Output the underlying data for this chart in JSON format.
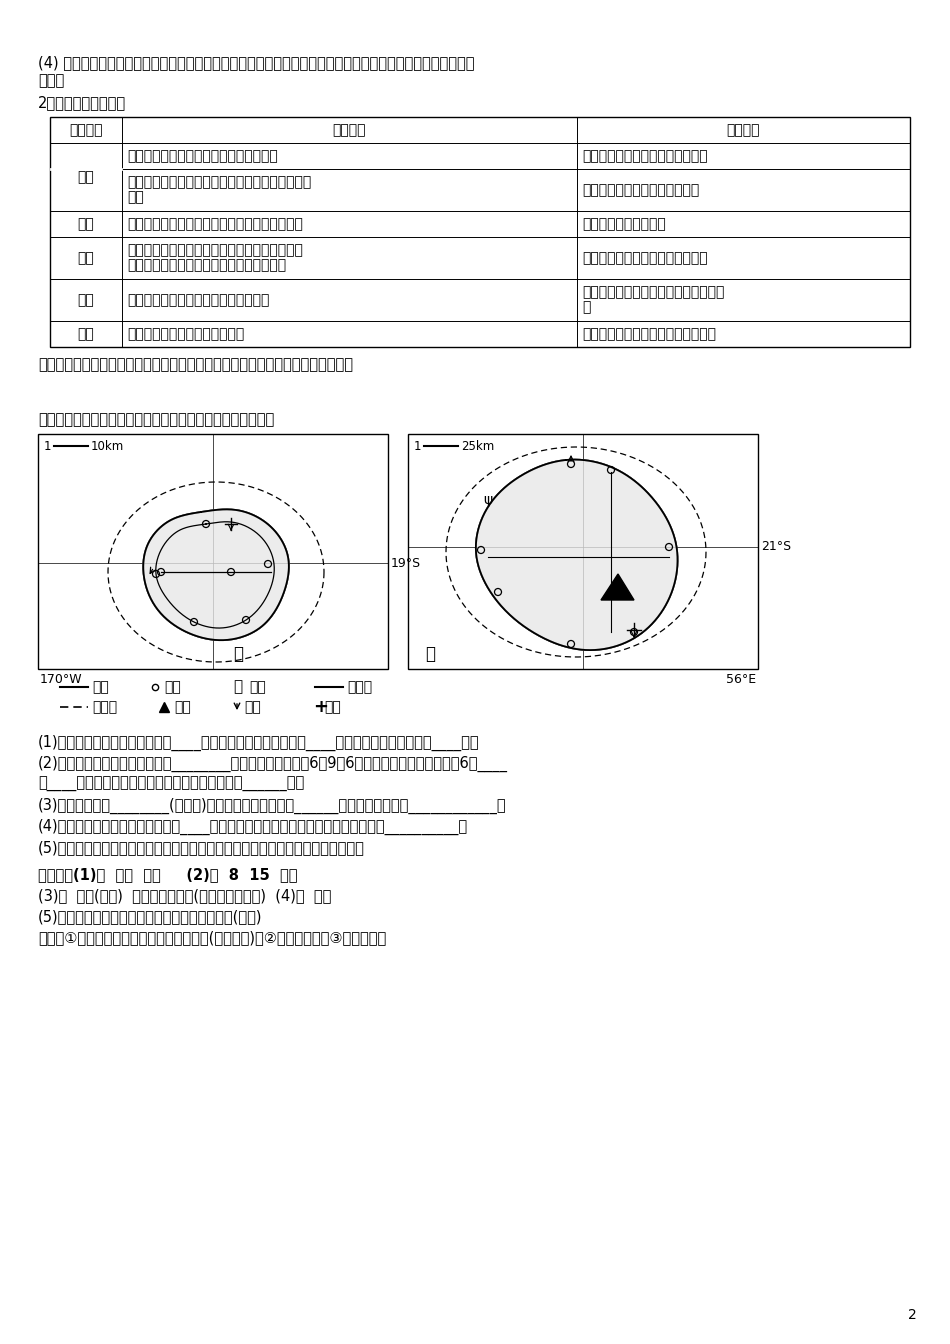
{
  "bg_color": "#ffffff",
  "top_text1": "(4) 土壤差异的形成：不同区域的气候、植被及人类生产活动因素的差异造成土壤类型、厚度、肥力、酸碱度的",
  "top_text2": "差异。",
  "top_text3": "2．人类活动因素差异",
  "table_header": [
    "人类活动",
    "差异成因",
    "具体表现"
  ],
  "row_data": [
    {
      "col1": "农业",
      "col2_lines": [
        "气候、地形、土壤、水源等自然条件差异"
      ],
      "col3_lines": [
        "作物种类、耕作制度、产量等差异"
      ],
      "merged": false
    },
    {
      "col1": "",
      "col2_lines": [
        "市场、劳动力、交通、科技、政策等社会经济条件",
        "差异"
      ],
      "col3_lines": [
        "机械化、生产率、商品率等差异"
      ],
      "merged": true
    },
    {
      "col1": "工业",
      "col2_lines": [
        "资源、市场、劳动力、科技、交通、政策等差异"
      ],
      "col3_lines": [
        "工业类型、规模等差异"
      ],
      "merged": false
    },
    {
      "col1": "人口",
      "col2_lines": [
        "区域耕地、水资源等自然条件和经济状况、科技",
        "水平、开发历史、开放程度等社会条件差异"
      ],
      "col3_lines": [
        "人口规模、密度、增长速度等差异"
      ],
      "merged": false
    },
    {
      "col1": "城市",
      "col2_lines": [
        "地形、气候、河流、资源、交通等差异"
      ],
      "col3_lines": [
        "城市形态、数量、规模、发展水平等差",
        "异"
      ],
      "merged": false
    },
    {
      "col1": "交通",
      "col2_lines": [
        "地形、位置、经济、人口等差异"
      ],
      "col3_lines": [
        "交通方式、线网密度、通达度等差异"
      ],
      "merged": false
    }
  ],
  "summary_text": "通过对以上因素的分析，确定区域特征差异，分析区域间的不同发展方向和状况。",
  "map_intro": "下图为甲、乙两岛略图，其中甲岛地势低平。完成下列要求。",
  "questions": [
    "(1)按东、西半球划分，甲岛位于____半球，甲岛周围的水域属于____洋，乙岛周围的水域属于____洋。",
    "(2)两岛相比，实际面积较大的是________岛。当乙岛的区时为6月9日6时，甲岛所在时区的区时为6月____",
    "日____时。当我国处于隆冬季节，甲岛盛行风向为______风。",
    "(3)乙岛主要是由________(内或外)力作用形成的，地形以______为主，地势特点是____________。",
    "(4)甲、乙两岛中公路密度较低的是____岛，导致该岛公路密度较低的主要自然因素是__________。",
    "(5)判断甲岛最大城镇所在地，并在图上把该城镇的符号圈出来；说明判断的理由。"
  ],
  "answers": [
    "【答案】(1)西  太平  印度     (2)乙  8  15  东南",
    "(3)内  山地(丘陵)  中间高，四周低(高差大，坡度陡)  (4)乙  地形",
    "(5)甲岛西侧中部交通线交点处为该岛最大城镇。(图略)",
    "理由：①位于环岛公路与横穿岛屿公路交点(交通枢扭)；②附近有机场；③地处海滨。"
  ],
  "page_num": "2"
}
